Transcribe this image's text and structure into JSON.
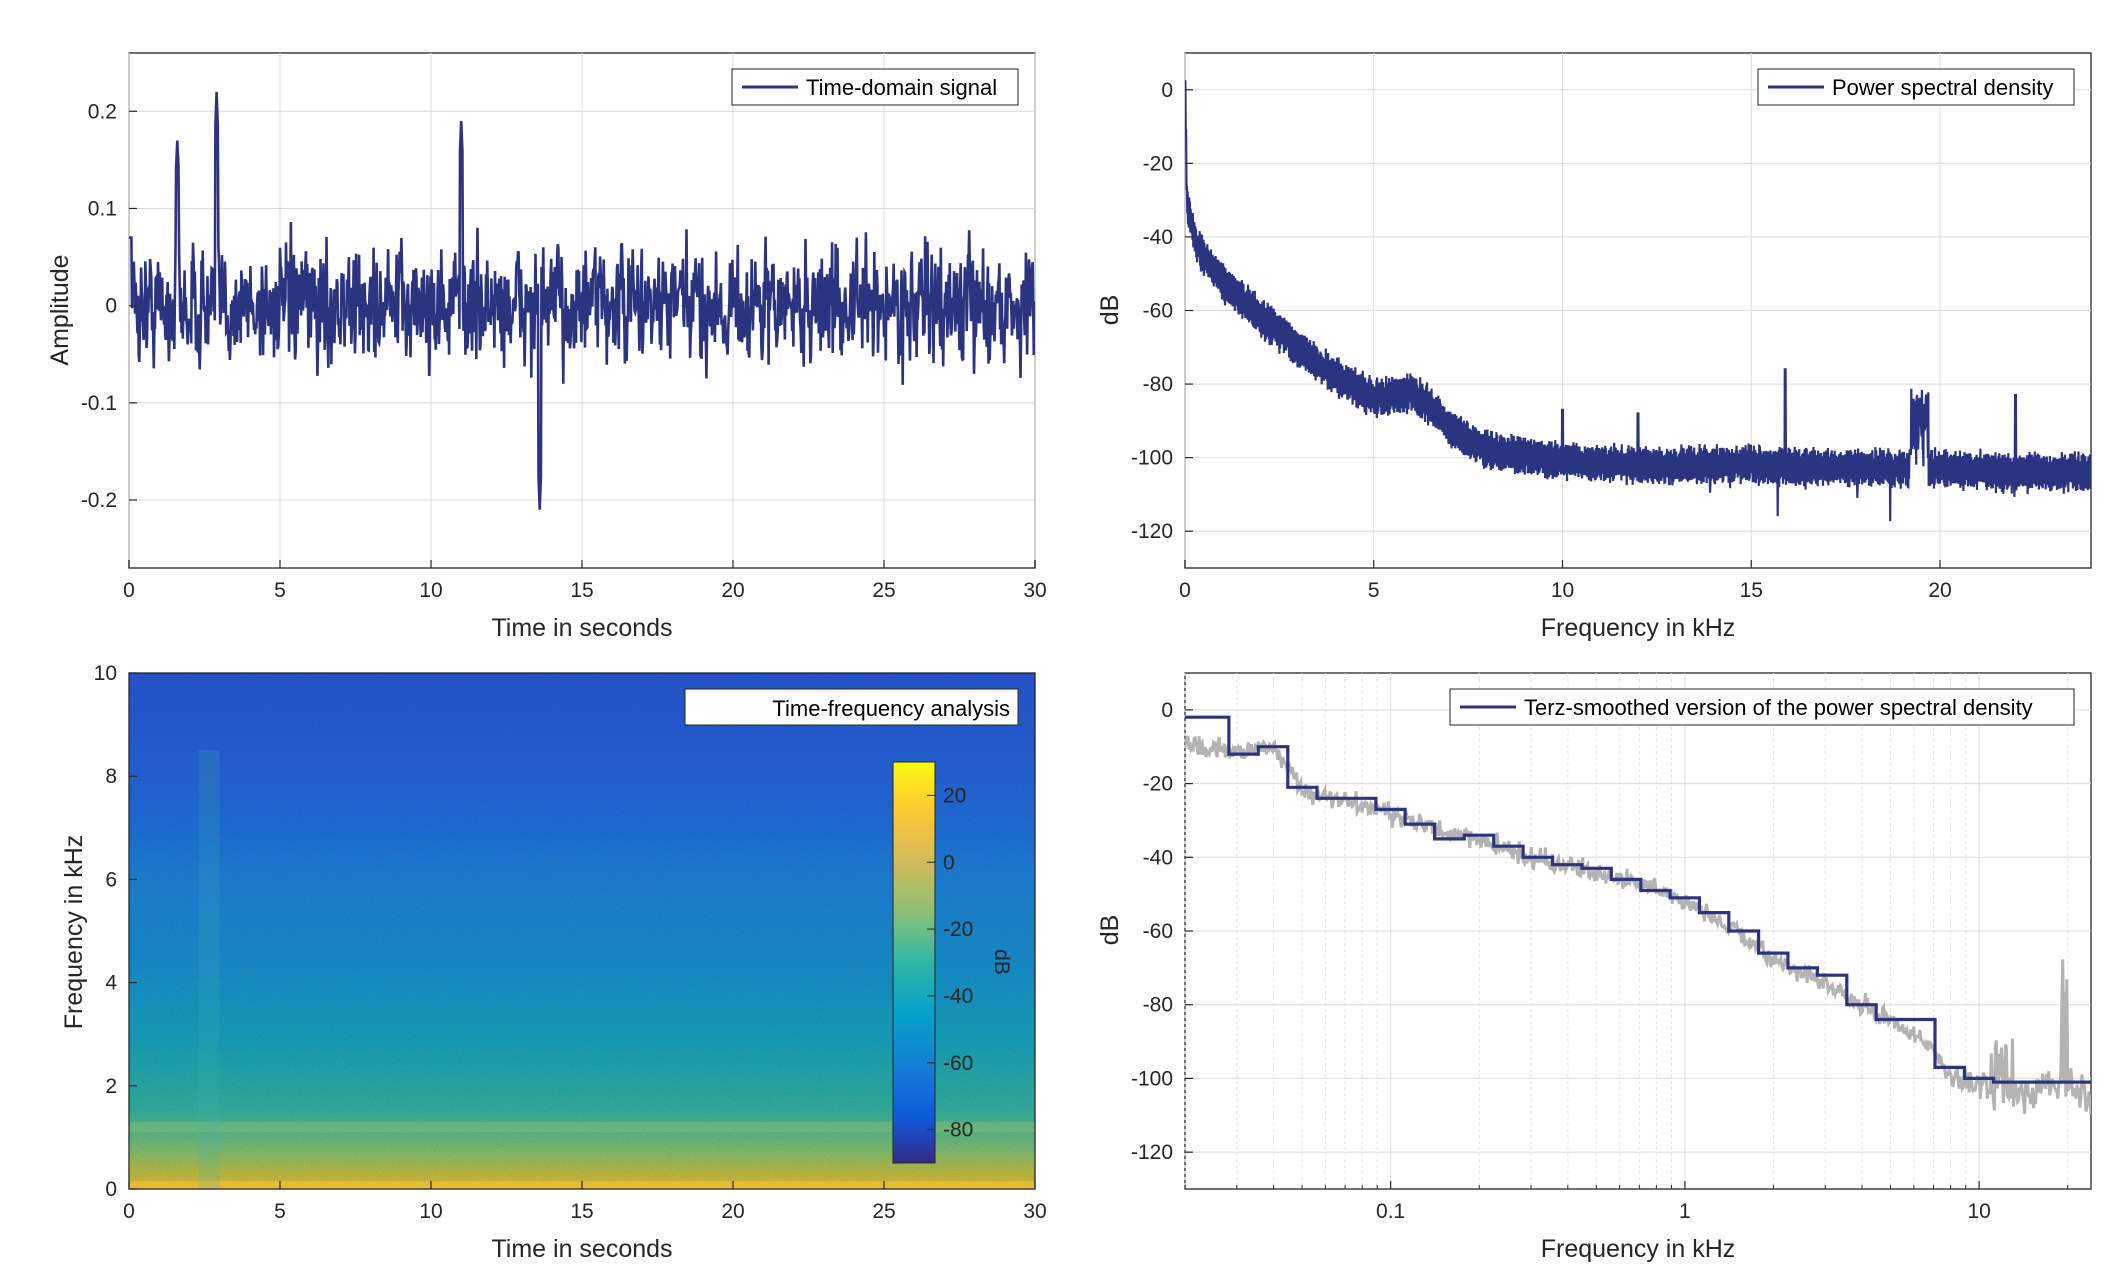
{
  "chart_data": [
    {
      "id": "time-domain",
      "type": "line",
      "xlabel": "Time in seconds",
      "ylabel": "Amplitude",
      "xlim": [
        0,
        30
      ],
      "ylim": [
        -0.27,
        0.26
      ],
      "xticks": [
        0,
        5,
        10,
        15,
        20,
        25,
        30
      ],
      "yticks": [
        0.2,
        0.1,
        0,
        -0.1,
        -0.2
      ],
      "xtick_labels": [
        "0",
        "5",
        "10",
        "15",
        "20",
        "25",
        "30"
      ],
      "ytick_labels": [
        "0.2",
        "0.1",
        "0",
        "-0.1",
        "-0.2"
      ],
      "legend": "Time-domain signal",
      "legend_position": "top-right",
      "grid": true,
      "color": "#2b3480",
      "approx_envelope": {
        "typical_range": [
          -0.1,
          0.1
        ],
        "peaks": [
          {
            "x": 2.9,
            "y": 0.22
          },
          {
            "x": 1.6,
            "y": 0.17
          },
          {
            "x": 11,
            "y": 0.19
          },
          {
            "x": 13.6,
            "y": -0.21
          }
        ]
      }
    },
    {
      "id": "psd",
      "type": "line",
      "xlabel": "Frequency in kHz",
      "ylabel": "dB",
      "xlim": [
        0,
        24
      ],
      "ylim": [
        -130,
        10
      ],
      "xticks": [
        0,
        5,
        10,
        15,
        20
      ],
      "yticks": [
        0,
        -20,
        -40,
        -60,
        -80,
        -100,
        -120
      ],
      "xtick_labels": [
        "0",
        "5",
        "10",
        "15",
        "20"
      ],
      "ytick_labels": [
        "0",
        "-20",
        "-40",
        "-60",
        "-80",
        "-100",
        "-120"
      ],
      "legend": "Power spectral density",
      "legend_position": "top-right",
      "grid": true,
      "color": "#2b3480",
      "approx_curve": {
        "x": [
          0,
          0.05,
          0.3,
          1,
          2,
          3,
          4,
          5,
          6,
          6.5,
          7,
          8,
          10,
          12,
          15,
          18,
          20,
          22,
          24
        ],
        "y": [
          5,
          -30,
          -42,
          -52,
          -62,
          -70,
          -78,
          -84,
          -82,
          -86,
          -92,
          -98,
          -101,
          -102,
          -102,
          -103,
          -103,
          -104,
          -104
        ]
      },
      "spikes": [
        {
          "x": 10,
          "y": -87
        },
        {
          "x": 12,
          "y": -88
        },
        {
          "x": 15.9,
          "y": -76
        },
        {
          "x": 19.4,
          "y": -74
        },
        {
          "x": 19.6,
          "y": -70
        },
        {
          "x": 22,
          "y": -83
        }
      ]
    },
    {
      "id": "spectrogram",
      "type": "heatmap",
      "xlabel": "Time in seconds",
      "ylabel": "Frequency in kHz",
      "xlim": [
        0,
        30
      ],
      "ylim": [
        0,
        10
      ],
      "xticks": [
        0,
        5,
        10,
        15,
        20,
        25,
        30
      ],
      "yticks": [
        0,
        2,
        4,
        6,
        8,
        10
      ],
      "xtick_labels": [
        "0",
        "5",
        "10",
        "15",
        "20",
        "25",
        "30"
      ],
      "ytick_labels": [
        "0",
        "2",
        "4",
        "6",
        "8",
        "10"
      ],
      "legend": "Time-frequency analysis",
      "legend_position": "top-right",
      "colorbar": {
        "label": "dB",
        "range": [
          -90,
          30
        ],
        "ticks": [
          20,
          0,
          -20,
          -40,
          -60,
          -80
        ],
        "tick_labels": [
          "20",
          "0",
          "-20",
          "-40",
          "-60",
          "-80"
        ],
        "colormap": "parula"
      },
      "approx_db_by_frequency": {
        "freq_khz": [
          0,
          0.3,
          1,
          2,
          3,
          4,
          5,
          6,
          7,
          8,
          10
        ],
        "db": [
          10,
          -10,
          -25,
          -35,
          -42,
          -48,
          -52,
          -55,
          -62,
          -66,
          -68
        ]
      }
    },
    {
      "id": "terz",
      "type": "line",
      "xlabel": "Frequency in kHz",
      "ylabel": "dB",
      "xscale": "log",
      "xlim": [
        0.02,
        24
      ],
      "ylim": [
        -130,
        10
      ],
      "xticks": [
        0.1,
        1,
        10
      ],
      "yticks": [
        0,
        -20,
        -40,
        -60,
        -80,
        -100,
        -120
      ],
      "xtick_labels": [
        "0.1",
        "1",
        "10"
      ],
      "ytick_labels": [
        "0",
        "-20",
        "-40",
        "-60",
        "-80",
        "-100",
        "-120"
      ],
      "legend": "Terz-smoothed version of the power spectral density",
      "legend_position": "top-right",
      "grid": true,
      "series": [
        {
          "role": "raw psd",
          "color": "#b3b3b3",
          "x": [
            0.02,
            0.03,
            0.04,
            0.05,
            0.07,
            0.1,
            0.15,
            0.2,
            0.3,
            0.5,
            0.7,
            1,
            1.5,
            2,
            3,
            4,
            5,
            7,
            8,
            10,
            15,
            20,
            24
          ],
          "y": [
            -10,
            -11,
            -10,
            -22,
            -25,
            -28,
            -33,
            -35,
            -40,
            -44,
            -47,
            -52,
            -60,
            -68,
            -74,
            -80,
            -84,
            -92,
            -100,
            -102,
            -104,
            -100,
            -106
          ]
        },
        {
          "role": "terz-smoothed",
          "color": "#2b3480",
          "edges": [
            0.02,
            0.0282,
            0.0355,
            0.0447,
            0.0562,
            0.0708,
            0.0891,
            0.112,
            0.141,
            0.178,
            0.224,
            0.282,
            0.355,
            0.447,
            0.562,
            0.708,
            0.891,
            1.12,
            1.41,
            1.78,
            2.24,
            2.82,
            3.55,
            4.47,
            5.62,
            7.08,
            8.91,
            11.2,
            14.1,
            17.8,
            24
          ],
          "values": [
            -2,
            -12,
            -10,
            -21,
            -24,
            -24,
            -27,
            -31,
            -35,
            -34,
            -37,
            -40,
            -42,
            -43,
            -46,
            -49,
            -51,
            -55,
            -60,
            -66,
            -70,
            -72,
            -80,
            -84,
            -84,
            -97,
            -100,
            -101,
            -101,
            -101
          ]
        }
      ]
    }
  ]
}
